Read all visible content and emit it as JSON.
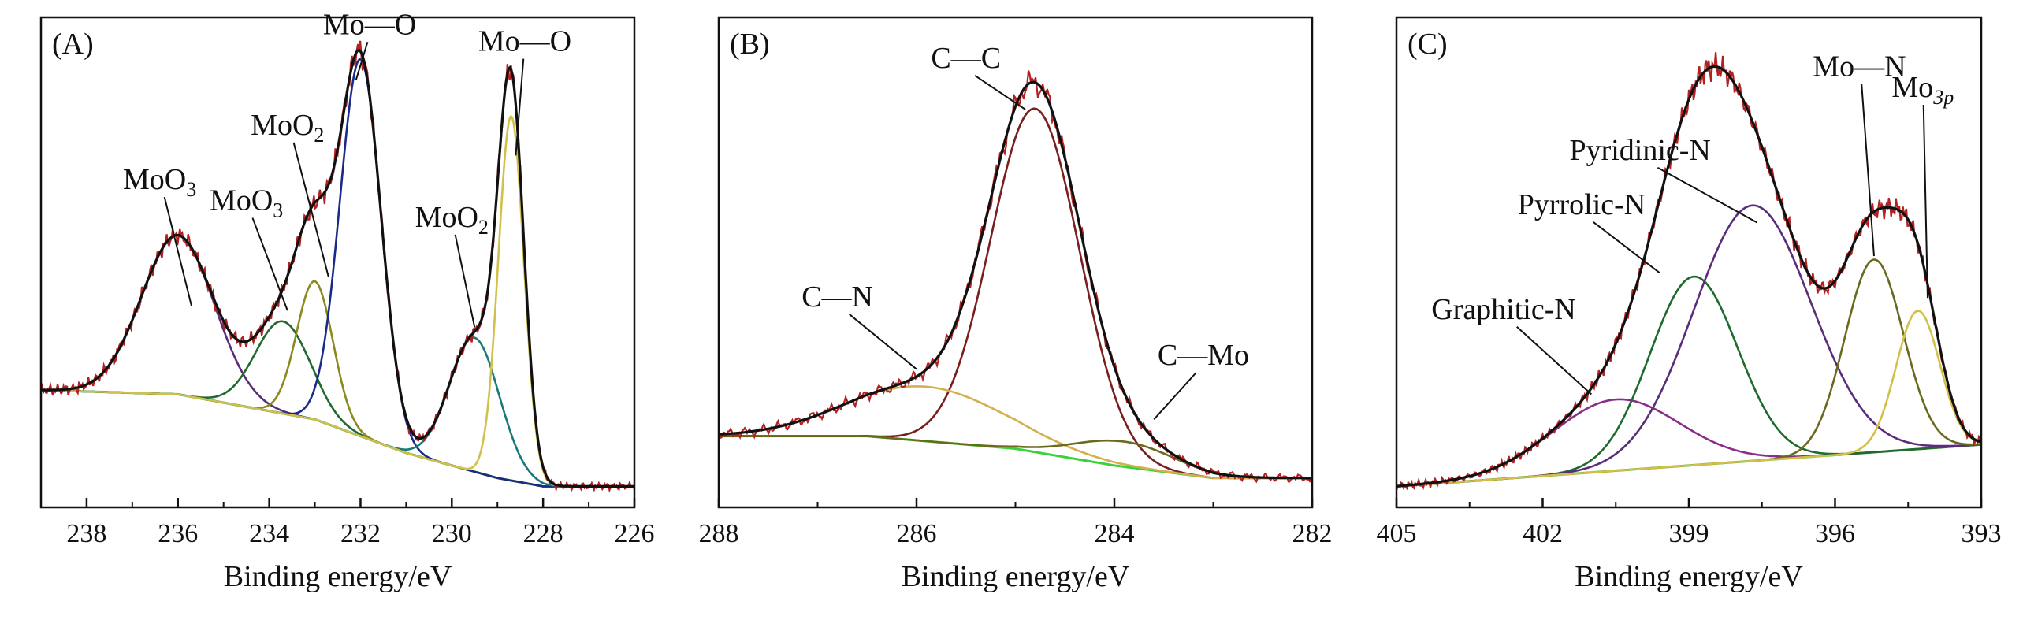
{
  "chart_data": [
    {
      "type": "line",
      "panel_label": "(A)",
      "xlabel": "Binding energy/eV",
      "ylabel": "",
      "xlim": [
        239,
        226
      ],
      "ylim": [
        -0.05,
        1.12
      ],
      "x_ticks": [
        238,
        236,
        234,
        232,
        230,
        228,
        226
      ],
      "x_tick_labels": [
        "238",
        "236",
        "234",
        "232",
        "230",
        "228",
        "226"
      ],
      "background": {
        "name": "Background",
        "color": "#3ad23a",
        "x": [
          239,
          236,
          233,
          231,
          229,
          228,
          226
        ],
        "y": [
          0.23,
          0.22,
          0.16,
          0.08,
          0.02,
          0.0,
          0.0
        ]
      },
      "components": [
        {
          "name": "MoO3",
          "center": 236.0,
          "amplitude": 0.38,
          "sigma": 0.8,
          "color": "#5a2d7a"
        },
        {
          "name": "MoO3",
          "center": 233.7,
          "amplitude": 0.22,
          "sigma": 0.6,
          "color": "#1f6a2e"
        },
        {
          "name": "MoO2",
          "center": 233.0,
          "amplitude": 0.33,
          "sigma": 0.4,
          "color": "#8a8a1e"
        },
        {
          "name": "Mo—O",
          "center": 232.0,
          "amplitude": 0.9,
          "sigma": 0.45,
          "color": "#1a2a8a"
        },
        {
          "name": "MoO2",
          "center": 229.5,
          "amplitude": 0.32,
          "sigma": 0.55,
          "color": "#1a7a7a"
        },
        {
          "name": "Mo—O",
          "center": 228.7,
          "amplitude": 0.87,
          "sigma": 0.28,
          "color": "#d2c04a"
        }
      ],
      "envelope_color": "#111111",
      "raw_color": "#b22222",
      "annotations": [
        {
          "text": "MoO",
          "sub": "3",
          "x": 236.4,
          "y": 0.71,
          "tip_x": 235.7,
          "tip_y": 0.43
        },
        {
          "text": "MoO",
          "sub": "3",
          "x": 234.5,
          "y": 0.66,
          "tip_x": 233.6,
          "tip_y": 0.42
        },
        {
          "text": "MoO",
          "sub": "2",
          "x": 233.6,
          "y": 0.84,
          "tip_x": 232.7,
          "tip_y": 0.5
        },
        {
          "text": "Mo—O",
          "x": 231.8,
          "y": 1.08,
          "tip_x": 232.1,
          "tip_y": 0.97
        },
        {
          "text": "MoO",
          "sub": "2",
          "x": 230.0,
          "y": 0.62,
          "tip_x": 229.5,
          "tip_y": 0.38
        },
        {
          "text": "Mo—O",
          "x": 228.4,
          "y": 1.04,
          "tip_x": 228.6,
          "tip_y": 0.79
        }
      ]
    },
    {
      "type": "line",
      "panel_label": "(B)",
      "xlabel": "Binding energy/eV",
      "ylabel": "",
      "xlim": [
        288,
        282
      ],
      "ylim": [
        -0.05,
        1.12
      ],
      "x_ticks": [
        288,
        286,
        284,
        282
      ],
      "x_tick_labels": [
        "288",
        "286",
        "284",
        "282"
      ],
      "background": {
        "name": "Background",
        "color": "#3ad23a",
        "x": [
          288,
          286.5,
          285,
          284,
          283,
          282
        ],
        "y": [
          0.12,
          0.12,
          0.09,
          0.05,
          0.02,
          0.02
        ]
      },
      "components": [
        {
          "name": "C—C",
          "center": 284.8,
          "amplitude": 0.82,
          "sigma": 0.45,
          "color": "#7a1f1f"
        },
        {
          "name": "C—N",
          "center": 285.9,
          "amplitude": 0.13,
          "sigma": 0.8,
          "color": "#d2b050"
        },
        {
          "name": "C—Mo",
          "center": 283.9,
          "amplitude": 0.06,
          "sigma": 0.5,
          "color": "#6a6a1e"
        }
      ],
      "envelope_color": "#111111",
      "raw_color": "#b22222",
      "annotations": [
        {
          "text": "C—C",
          "x": 285.5,
          "y": 1.0,
          "tip_x": 284.9,
          "tip_y": 0.9
        },
        {
          "text": "C—N",
          "x": 286.8,
          "y": 0.43,
          "tip_x": 286.0,
          "tip_y": 0.28
        },
        {
          "text": "C—Mo",
          "x": 283.1,
          "y": 0.29,
          "tip_x": 283.6,
          "tip_y": 0.16
        }
      ]
    },
    {
      "type": "line",
      "panel_label": "(C)",
      "xlabel": "Binding energy/eV",
      "ylabel": "",
      "xlim": [
        405,
        393
      ],
      "ylim": [
        -0.05,
        1.12
      ],
      "x_ticks": [
        405,
        402,
        399,
        396,
        393
      ],
      "x_tick_labels": [
        "405",
        "402",
        "399",
        "396",
        "393"
      ],
      "background": {
        "name": "Background",
        "color": "#3ad23a",
        "x": [
          405,
          393
        ],
        "y": [
          0.0,
          0.1
        ]
      },
      "components": [
        {
          "name": "Graphitic-N",
          "center": 400.5,
          "amplitude": 0.17,
          "sigma": 1.3,
          "color": "#8a2d8a"
        },
        {
          "name": "Pyrrolic-N",
          "center": 398.9,
          "amplitude": 0.45,
          "sigma": 0.9,
          "color": "#1f6a2e"
        },
        {
          "name": "Pyridinic-N",
          "center": 397.7,
          "amplitude": 0.61,
          "sigma": 1.2,
          "color": "#5a2d7a"
        },
        {
          "name": "Mo—N",
          "center": 395.2,
          "amplitude": 0.46,
          "sigma": 0.6,
          "color": "#6a6a1e"
        },
        {
          "name": "Mo3p",
          "center": 394.3,
          "amplitude": 0.33,
          "sigma": 0.45,
          "color": "#d2c04a"
        }
      ],
      "envelope_color": "#111111",
      "raw_color": "#b22222",
      "annotations": [
        {
          "text": "Graphitic-N",
          "x": 402.8,
          "y": 0.4,
          "tip_x": 401.0,
          "tip_y": 0.22
        },
        {
          "text": "Pyrrolic-N",
          "x": 401.2,
          "y": 0.65,
          "tip_x": 399.6,
          "tip_y": 0.51
        },
        {
          "text": "Pyridinic-N",
          "x": 400.0,
          "y": 0.78,
          "tip_x": 397.6,
          "tip_y": 0.63
        },
        {
          "text": "Mo—N",
          "x": 395.5,
          "y": 0.98,
          "tip_x": 395.2,
          "tip_y": 0.55
        },
        {
          "text": "Mo",
          "sub": "3p",
          "x": 394.2,
          "y": 0.93,
          "tip_x": 394.1,
          "tip_y": 0.45
        }
      ]
    }
  ]
}
